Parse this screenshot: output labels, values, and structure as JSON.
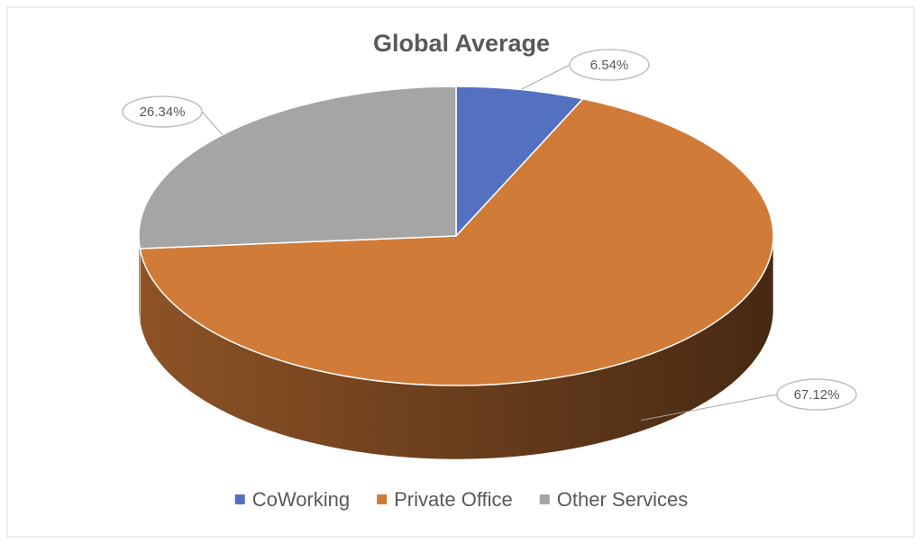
{
  "chart_data": {
    "type": "pie3d",
    "title": "Global Average",
    "categories": [
      "CoWorking",
      "Private Office",
      "Other Services"
    ],
    "values": [
      6.54,
      67.12,
      26.34
    ],
    "value_labels": [
      "6.54%",
      "67.12%",
      "26.34%"
    ],
    "colors": [
      "#5470c1",
      "#d17b38",
      "#a5a5a5"
    ],
    "legend": "bottom"
  }
}
